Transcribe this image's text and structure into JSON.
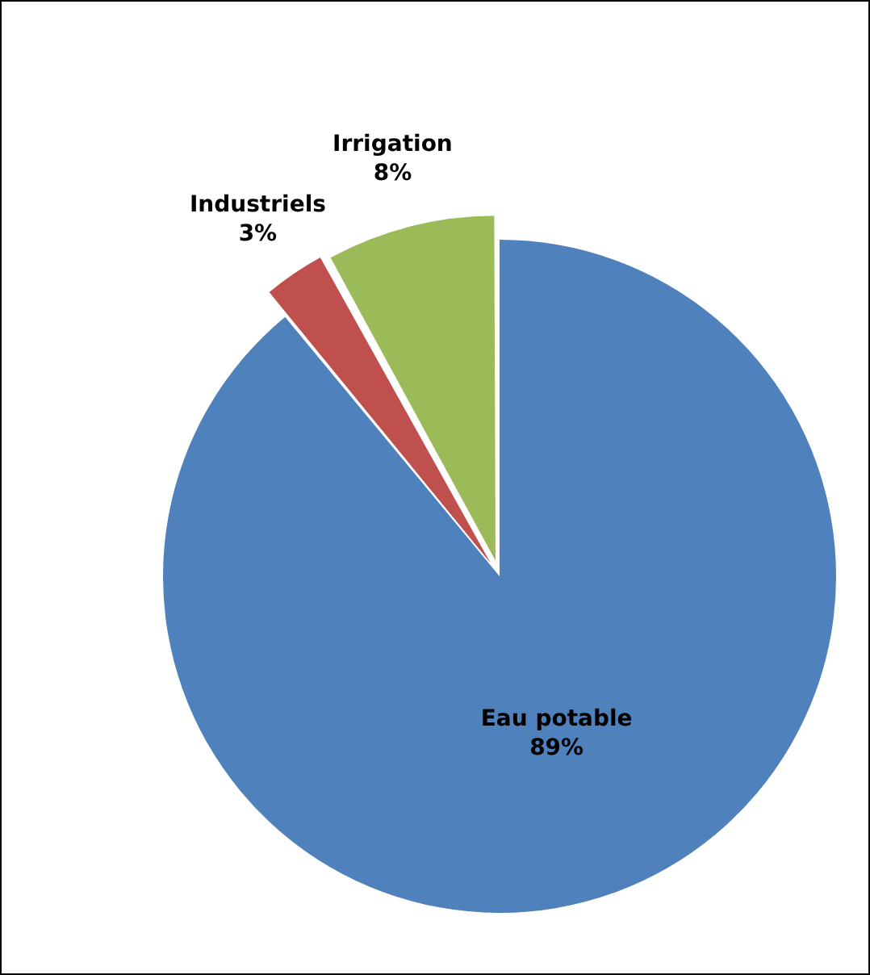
{
  "chart_data": {
    "type": "pie",
    "categories": [
      "Eau potable",
      "Industriels",
      "Irrigation"
    ],
    "values": [
      89,
      3,
      8
    ],
    "colors": [
      "#4f81bd",
      "#c0504d",
      "#9bbb59"
    ],
    "value_labels": [
      "89%",
      "3%",
      "8%"
    ],
    "legend": false
  }
}
